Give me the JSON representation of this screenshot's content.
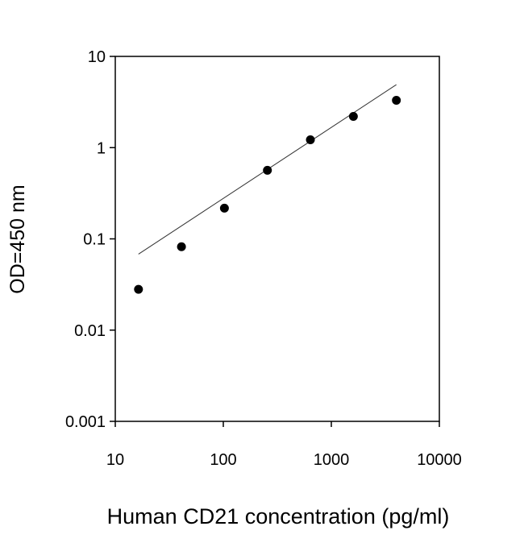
{
  "chart_data": {
    "type": "scatter",
    "x_label": "Human CD21 concentration (pg/ml)",
    "y_label": "OD=450 nm",
    "x": [
      16.4,
      41,
      102.4,
      256,
      640,
      1600,
      4000
    ],
    "values": [
      0.028,
      0.082,
      0.217,
      0.565,
      1.22,
      2.2,
      3.3
    ],
    "color": "#000000",
    "fit_line": {
      "x": [
        16.4,
        4000
      ],
      "values": [
        0.068,
        4.9
      ],
      "color": "#333333"
    },
    "xscale": "log",
    "yscale": "log",
    "xlim": [
      10,
      10000
    ],
    "ylim": [
      0.001,
      10
    ],
    "xticks": [
      10,
      100,
      1000,
      10000
    ],
    "yticks": [
      0.001,
      0.01,
      0.1,
      1,
      10
    ]
  }
}
